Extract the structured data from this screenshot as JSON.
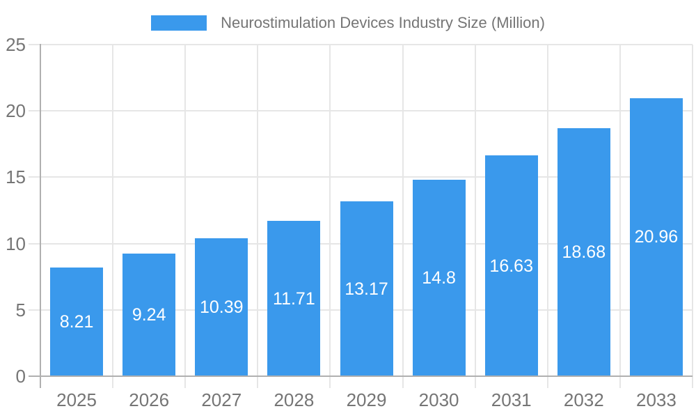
{
  "chart_data": {
    "type": "bar",
    "title": "Neurostimulation Devices Industry Size (Million)",
    "categories": [
      "2025",
      "2026",
      "2027",
      "2028",
      "2029",
      "2030",
      "2031",
      "2032",
      "2033"
    ],
    "values": [
      8.21,
      9.24,
      10.39,
      11.71,
      13.17,
      14.8,
      16.63,
      18.68,
      20.96
    ],
    "value_labels": [
      "8.21",
      "9.24",
      "10.39",
      "11.71",
      "13.17",
      "14.8",
      "16.63",
      "18.68",
      "20.96"
    ],
    "xlabel": "",
    "ylabel": "",
    "ylim": [
      0,
      25
    ],
    "yticks": [
      0,
      5,
      10,
      15,
      20,
      25
    ],
    "ytick_labels": [
      "0",
      "5",
      "10",
      "15",
      "20",
      "25"
    ],
    "legend_position": "top",
    "grid": true
  },
  "colors": {
    "bar": "#3a99ec",
    "grid": "#e6e6e6",
    "axis": "#b0b0b0",
    "axis_label": "#757575",
    "bar_label": "#ffffff",
    "legend_text": "#757575",
    "background": "#ffffff"
  }
}
